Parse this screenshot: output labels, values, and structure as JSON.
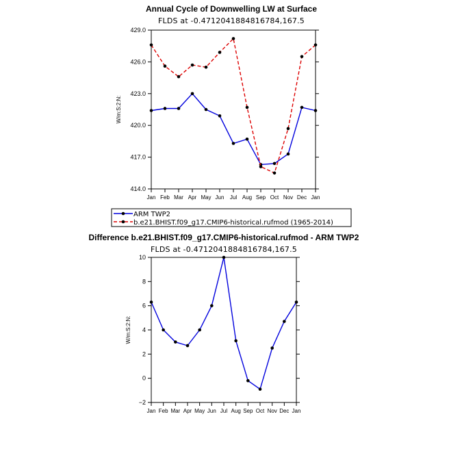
{
  "chart_data": [
    {
      "type": "line",
      "title": "Annual Cycle of Downwelling LW at Surface",
      "subtitle": "FLDS at -0.4712041884816784,167.5",
      "ylabel": "W/m:S:2:N:",
      "xlabel": "",
      "categories": [
        "Jan",
        "Feb",
        "Mar",
        "Apr",
        "May",
        "Jun",
        "Jul",
        "Aug",
        "Sep",
        "Oct",
        "Nov",
        "Dec",
        "Jan"
      ],
      "ylim": [
        414.0,
        429.0
      ],
      "yticks": [
        "414.0",
        "417.0",
        "420.0",
        "423.0",
        "426.0",
        "429.0"
      ],
      "legend_position": "bottom",
      "series": [
        {
          "name": "ARM TWP2",
          "color": "#0000dd",
          "dash": "solid",
          "values": [
            421.4,
            421.6,
            421.6,
            423.0,
            421.5,
            420.9,
            418.3,
            418.7,
            416.3,
            416.4,
            417.3,
            421.7,
            421.4
          ]
        },
        {
          "name": "b.e21.BHIST.f09_g17.CMIP6-historical.rufmod (1965-2014)",
          "color": "#dd0000",
          "dash": "dashed",
          "values": [
            427.6,
            425.6,
            424.6,
            425.7,
            425.5,
            426.9,
            428.2,
            421.7,
            416.1,
            415.5,
            419.7,
            426.5,
            427.6
          ]
        }
      ]
    },
    {
      "type": "line",
      "title": "Difference b.e21.BHIST.f09_g17.CMIP6-historical.rufmod - ARM TWP2",
      "subtitle": "FLDS at -0.4712041884816784,167.5",
      "ylabel": "W/m:S:2:N:",
      "xlabel": "",
      "categories": [
        "Jan",
        "Feb",
        "Mar",
        "Apr",
        "May",
        "Jun",
        "Jul",
        "Aug",
        "Sep",
        "Oct",
        "Nov",
        "Dec",
        "Jan"
      ],
      "ylim": [
        -2,
        10
      ],
      "yticks": [
        "−2",
        "0",
        "2",
        "4",
        "6",
        "8",
        "10"
      ],
      "series": [
        {
          "name": "Difference",
          "color": "#0000dd",
          "dash": "solid",
          "values": [
            6.3,
            4.0,
            3.0,
            2.7,
            4.0,
            6.0,
            10.0,
            3.1,
            -0.2,
            -0.9,
            2.5,
            4.7,
            6.3
          ]
        }
      ]
    }
  ]
}
